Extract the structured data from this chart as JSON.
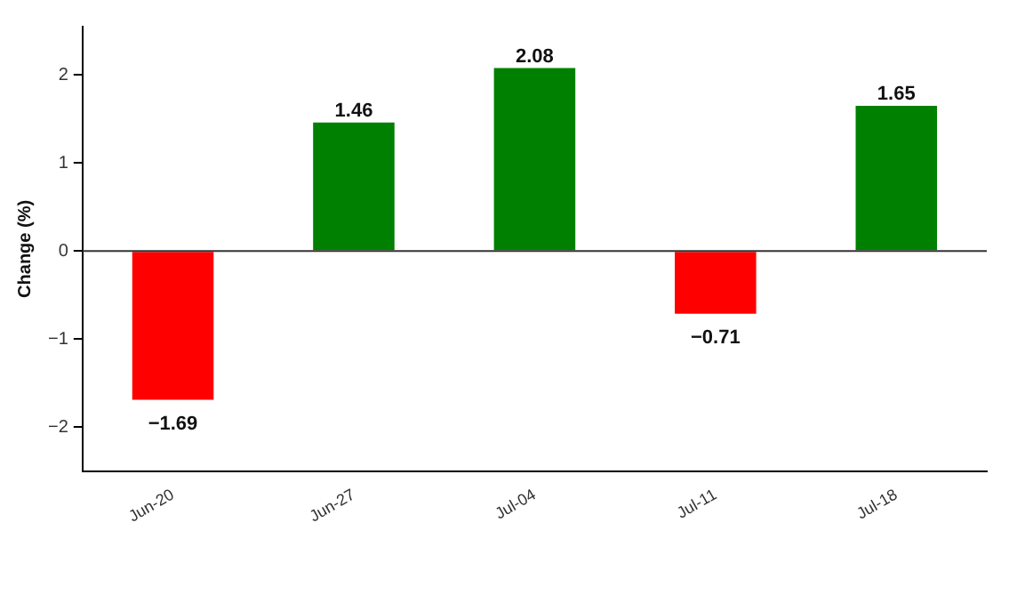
{
  "chart_data": {
    "type": "bar",
    "ylabel": "Change (%)",
    "categories": [
      "Jun-20",
      "Jun-27",
      "Jul-04",
      "Jul-11",
      "Jul-18"
    ],
    "values": [
      -1.69,
      1.46,
      2.08,
      -0.71,
      1.65
    ],
    "colors": [
      "#ff0000",
      "#008000",
      "#008000",
      "#ff0000",
      "#008000"
    ],
    "value_labels": [
      "−1.69",
      "1.46",
      "2.08",
      "−0.71",
      "1.65"
    ],
    "ylim": [
      -2.5,
      2.55
    ],
    "yticks": [
      {
        "value": -2,
        "label": "−2"
      },
      {
        "value": -1,
        "label": "−1"
      },
      0,
      1,
      2
    ],
    "ref_lines": [
      {
        "axis": "y",
        "value": 0,
        "color": "#333333"
      }
    ],
    "grid": false,
    "legend": false
  }
}
